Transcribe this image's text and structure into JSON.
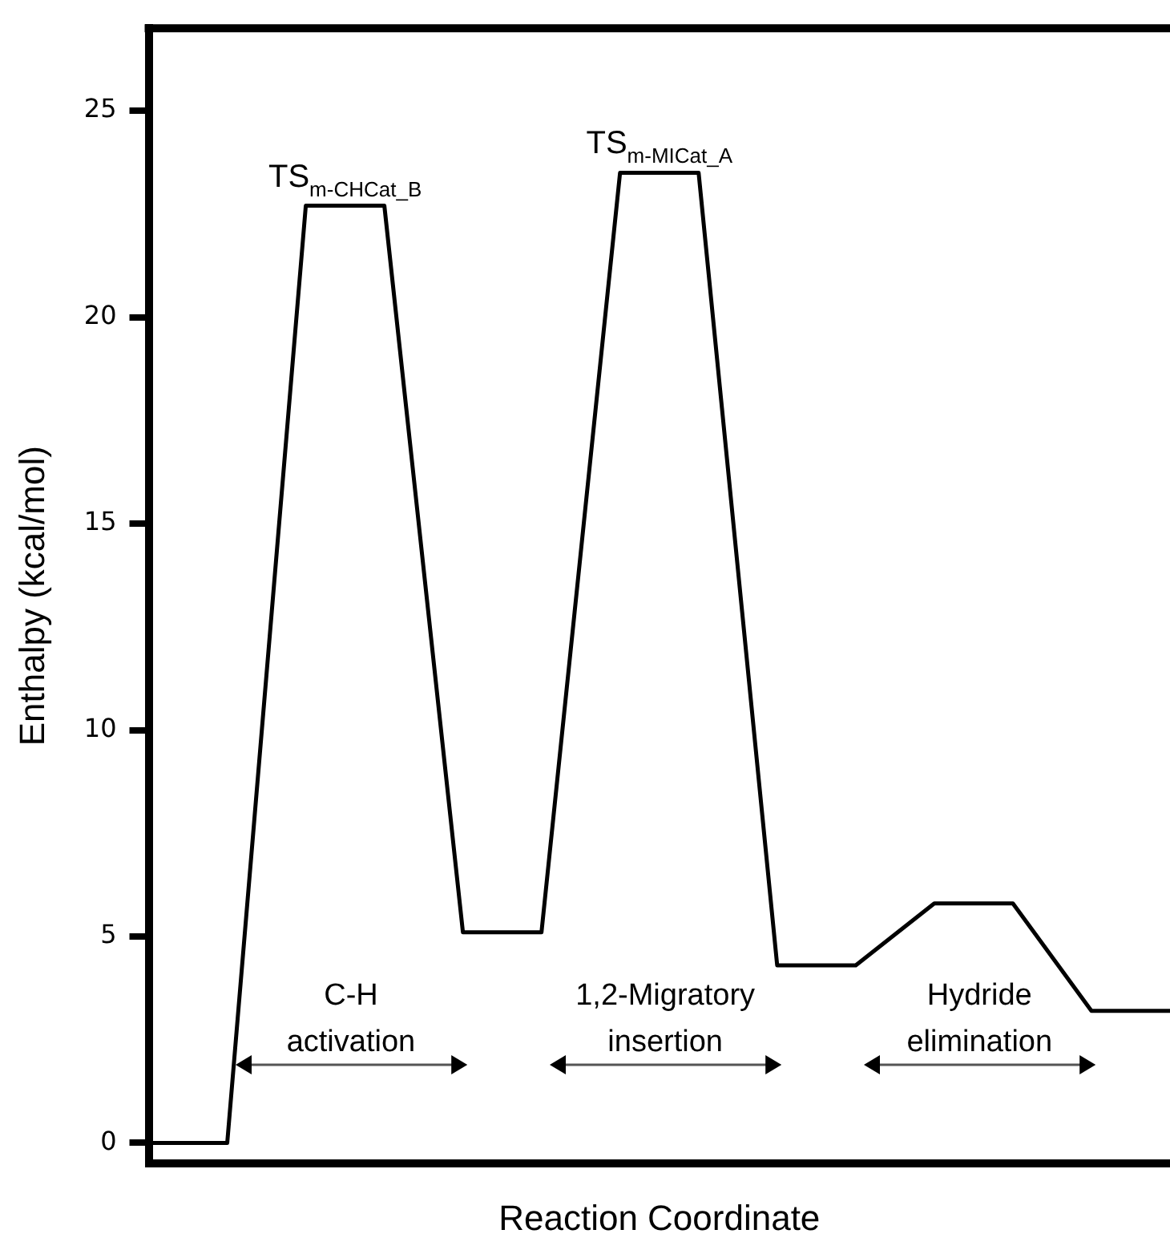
{
  "chart_data": {
    "type": "line",
    "xlabel": "Reaction Coordinate",
    "ylabel": "Enthalpy (kcal/mol)",
    "categories": [
      null,
      null,
      null,
      null,
      null,
      null,
      null,
      null,
      null,
      null,
      null,
      null,
      null,
      null
    ],
    "series": [
      {
        "color": "#000000",
        "line_style": "solid",
        "values": [
          0,
          0,
          22.7,
          22.7,
          5.1,
          5.1,
          23.5,
          23.5,
          4.3,
          4.3,
          5.8,
          5.8,
          3.2,
          3.2
        ]
      }
    ],
    "ylim": [
      -0.5,
      27
    ],
    "yticks": [
      0,
      5,
      10,
      15,
      20,
      25
    ],
    "tick_labels": "y",
    "grid": false,
    "legend": false,
    "marker": "none",
    "annotations": [
      "TS$_{m-CHCat_B}$",
      "TS$_{m-MICat_A}$",
      "C-H activation",
      "1,2-Migratory insertion",
      "Hydride elimination"
    ]
  }
}
